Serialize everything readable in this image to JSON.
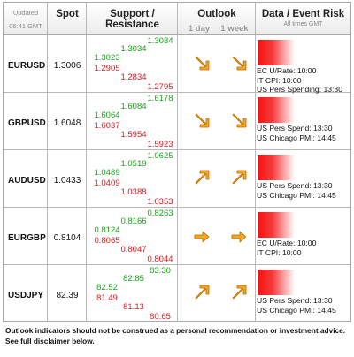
{
  "header": {
    "updated_label": "Updated",
    "updated_time": "06:41 GMT",
    "spot": "Spot",
    "support_resistance": "Support / Resistance",
    "outlook": "Outlook",
    "outlook_1day": "1 day",
    "outlook_1week": "1 week",
    "data_event_risk": "Data / Event Risk",
    "all_times": "All times GMT"
  },
  "rows": [
    {
      "pair": "EURUSD",
      "spot": "1.3006",
      "r1": "1.3023",
      "s1": "1.2905",
      "r2": "1.3034",
      "s2": "1.2834",
      "r3": "1.3084",
      "s3": "1.2795",
      "outlook_1day": "down-right",
      "outlook_1week": "down-right",
      "events": [
        "EC U/Rate: 10:00",
        "IT CPI: 10:00",
        "US Pers Spending: 13:30"
      ]
    },
    {
      "pair": "GBPUSD",
      "spot": "1.6048",
      "r1": "1.6064",
      "s1": "1.6037",
      "r2": "1.6084",
      "s2": "1.5954",
      "r3": "1.6178",
      "s3": "1.5923",
      "outlook_1day": "down-right",
      "outlook_1week": "down-right",
      "events": [
        "US Pers Spend: 13:30",
        "US Chicago PMI: 14:45"
      ]
    },
    {
      "pair": "AUDUSD",
      "spot": "1.0433",
      "r1": "1.0489",
      "s1": "1.0409",
      "r2": "1.0519",
      "s2": "1.0388",
      "r3": "1.0625",
      "s3": "1.0353",
      "outlook_1day": "up-right",
      "outlook_1week": "up-right",
      "events": [
        "US Pers Spend: 13:30",
        "US Chicago PMI: 14:45"
      ]
    },
    {
      "pair": "EURGBP",
      "spot": "0.8104",
      "r1": "0.8124",
      "s1": "0.8065",
      "r2": "0.8166",
      "s2": "0.8047",
      "r3": "0.8263",
      "s3": "0.8044",
      "outlook_1day": "right",
      "outlook_1week": "right",
      "events": [
        "EC U/Rate: 10:00",
        "IT CPI: 10:00"
      ]
    },
    {
      "pair": "USDJPY",
      "spot": "82.39",
      "r1": "82.52",
      "s1": "81.49",
      "r2": "82.85",
      "s2": "81.13",
      "r3": "83.30",
      "s3": "80.65",
      "outlook_1day": "up-right",
      "outlook_1week": "up-right",
      "events": [
        "US Pers Spend: 13:30",
        "US Chicago PMI: 14:45"
      ]
    }
  ],
  "footer": {
    "line1": "Outlook indicators should not be construed as a personal recommendation or investment advice.",
    "line2": "See full disclaimer below."
  },
  "colors": {
    "resistance": "#19a219",
    "support": "#d8181f",
    "arrow_fill": "#f5a623",
    "event_bar": "#f81010"
  },
  "icons": {
    "down-right": "arrow-down-right-icon",
    "up-right": "arrow-up-right-icon",
    "right": "arrow-right-icon"
  }
}
